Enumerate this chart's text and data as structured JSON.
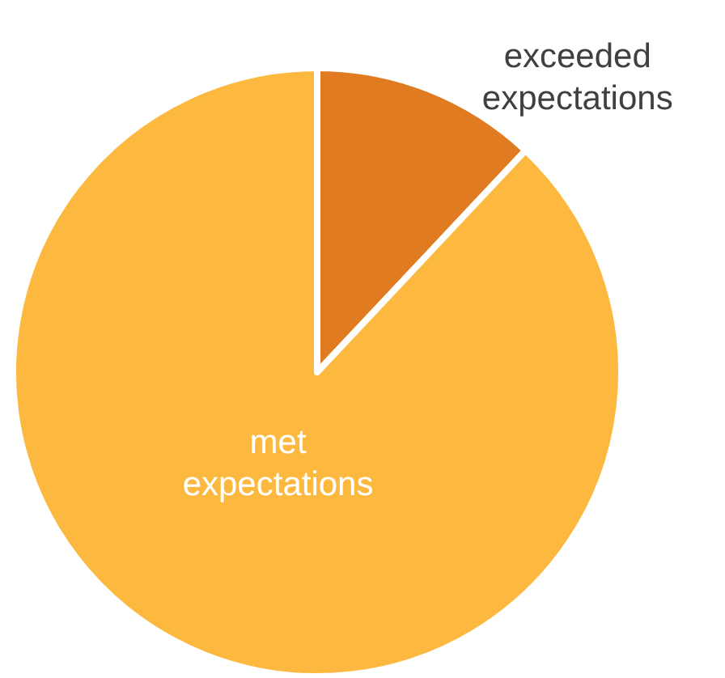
{
  "chart_data": {
    "type": "pie",
    "categories": [
      "exceeded expectations",
      "met expectations"
    ],
    "values": [
      12,
      88
    ],
    "colors": [
      "#e07b22",
      "#fdb93f"
    ]
  }
}
